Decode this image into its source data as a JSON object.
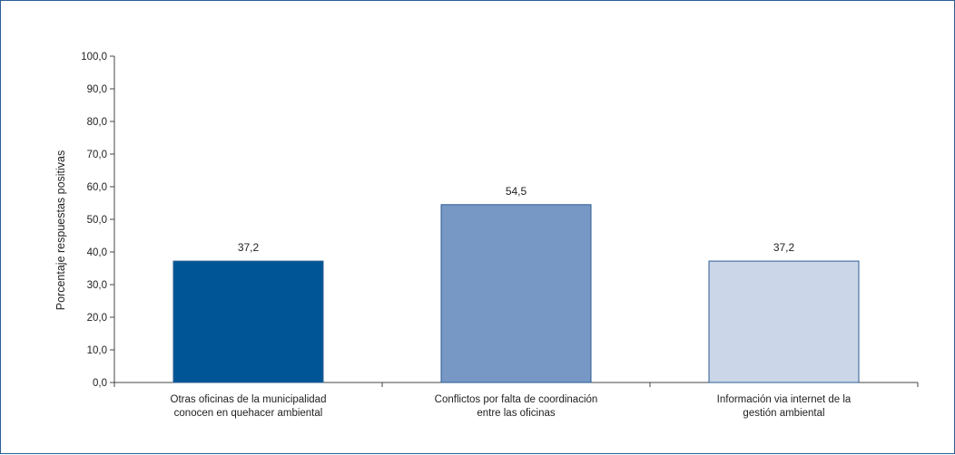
{
  "chart_data": {
    "type": "bar",
    "categories": [
      [
        "Otras oficinas de la municipalidad",
        "conocen en quehacer ambiental"
      ],
      [
        "Conflictos por falta de coordinación",
        "entre las oficinas"
      ],
      [
        "Información via internet de la",
        "gestión ambiental"
      ]
    ],
    "values": [
      37.2,
      54.5,
      37.2
    ],
    "value_labels": [
      "37,2",
      "54,5",
      "37,2"
    ],
    "colors": [
      "#005596",
      "#7797c4",
      "#cbd6e8"
    ],
    "ylabel": "Porcentaje respuestas positivas",
    "ylim": [
      0,
      100
    ],
    "yticks": [
      0,
      10,
      20,
      30,
      40,
      50,
      60,
      70,
      80,
      90,
      100
    ],
    "ytick_labels": [
      "0,0",
      "10,0",
      "20,0",
      "30,0",
      "40,0",
      "50,0",
      "60,0",
      "70,0",
      "80,0",
      "90,0",
      "100,0"
    ],
    "grid": false,
    "legend": "none",
    "frame_color": "#2b5e93",
    "axis_color": "#444444"
  }
}
